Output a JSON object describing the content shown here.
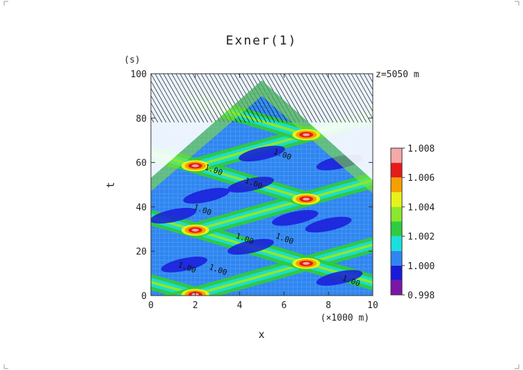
{
  "chart_data": {
    "type": "heatmap",
    "title": "Exner(1)",
    "xlabel": "x",
    "xunit": "(×1000 m)",
    "ylabel": "t",
    "yunit": "(s)",
    "annotation": "z=5050 m",
    "xlim": [
      0,
      10
    ],
    "ylim": [
      0,
      100
    ],
    "xticks": [
      0,
      2,
      4,
      6,
      8,
      10
    ],
    "yticks": [
      0,
      20,
      40,
      60,
      80,
      100
    ],
    "colorbar": {
      "levels": [
        0.998,
        1.0,
        1.002,
        1.004,
        1.006,
        1.008
      ],
      "level_labels": [
        "0.998",
        "1.000",
        "1.002",
        "1.004",
        "1.006",
        "1.008"
      ],
      "colors": [
        "#7b16a8",
        "#1a1ad9",
        "#2f86f0",
        "#19e0dc",
        "#2ecc40",
        "#8ae82c",
        "#e8f21a",
        "#f5a000",
        "#e81a1a",
        "#f7a8a8"
      ]
    },
    "contour_labels": [
      "1.00",
      "1.00",
      "1.00",
      "1.00",
      "1.00",
      "1.00",
      "1.00",
      "1.00",
      "1.00"
    ],
    "peaks": [
      {
        "x": 2.0,
        "t": 0.5
      },
      {
        "x": 2.0,
        "t": 29.5
      },
      {
        "x": 2.0,
        "t": 58.5
      },
      {
        "x": 7.0,
        "t": 14.5
      },
      {
        "x": 7.0,
        "t": 43.5
      },
      {
        "x": 7.0,
        "t": 72.5
      }
    ]
  },
  "colors": {
    "background": "#2f86f0",
    "grid_line": "#8fc0ff",
    "axis": "#333333"
  }
}
